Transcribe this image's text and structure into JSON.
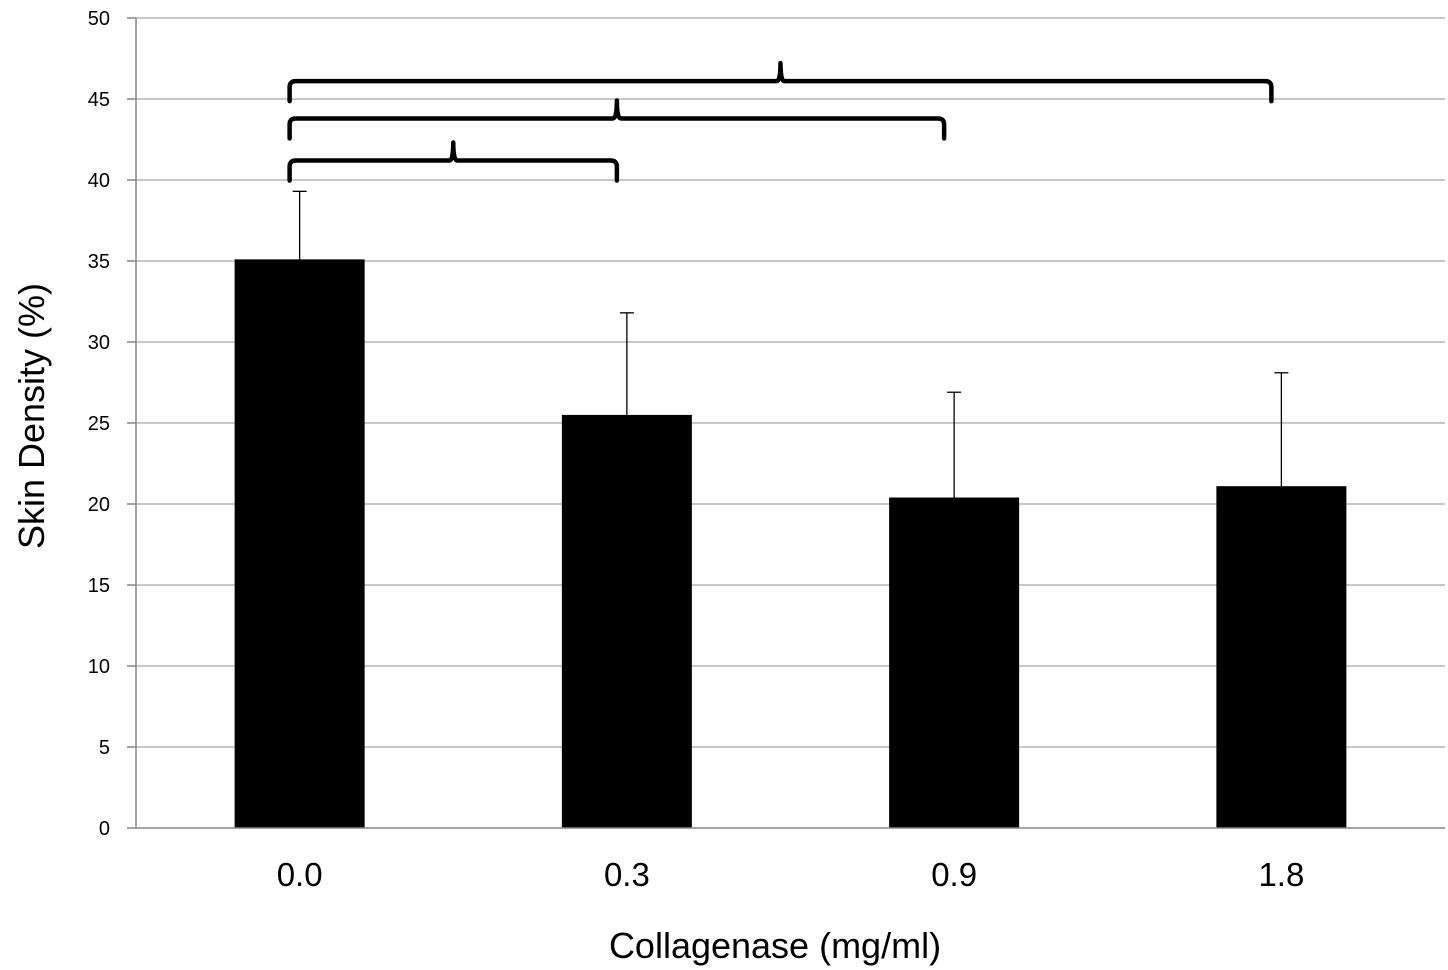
{
  "chart_data": {
    "type": "bar",
    "categories": [
      "0.0",
      "0.3",
      "0.9",
      "1.8"
    ],
    "values": [
      35.1,
      25.5,
      20.4,
      21.1
    ],
    "error_upper": [
      4.2,
      6.3,
      6.5,
      7.0
    ],
    "title": "",
    "xlabel": "Collagenase (mg/ml)",
    "ylabel": "Skin Density (%)",
    "ylim": [
      0,
      50
    ],
    "yticks": [
      0,
      5,
      10,
      15,
      20,
      25,
      30,
      35,
      40,
      45,
      50
    ],
    "grid": true,
    "legend": "none",
    "bar_color": "#000000",
    "significance_brackets": [
      {
        "from": "0.0",
        "to": "0.3",
        "level": 41.2
      },
      {
        "from": "0.0",
        "to": "0.9",
        "level": 43.8
      },
      {
        "from": "0.0",
        "to": "1.8",
        "level": 46.1
      }
    ]
  }
}
